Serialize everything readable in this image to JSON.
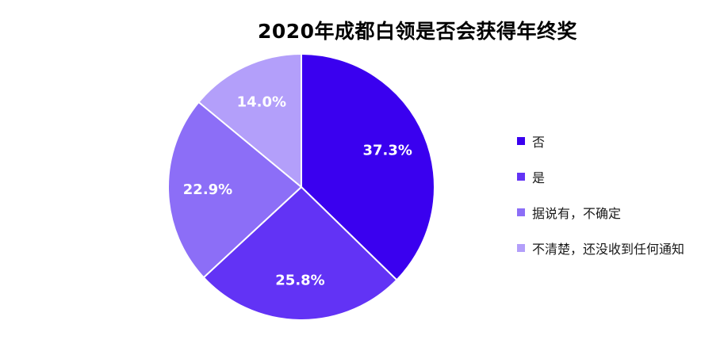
{
  "chart_data": {
    "type": "pie",
    "title": "2020年成都白领是否会获得年终奖",
    "categories": [
      "否",
      "是",
      "据说有，不确定",
      "不清楚，还没收到任何通知"
    ],
    "values": [
      37.3,
      25.8,
      22.9,
      14.0
    ],
    "value_labels": [
      "37.3%",
      "25.8%",
      "22.9%",
      "14.0%"
    ],
    "colors": [
      "#3a00ef",
      "#6233f5",
      "#8c6ef7",
      "#b39ffa"
    ],
    "start_angle": "12 o'clock",
    "direction": "clockwise",
    "legend_position": "right"
  }
}
